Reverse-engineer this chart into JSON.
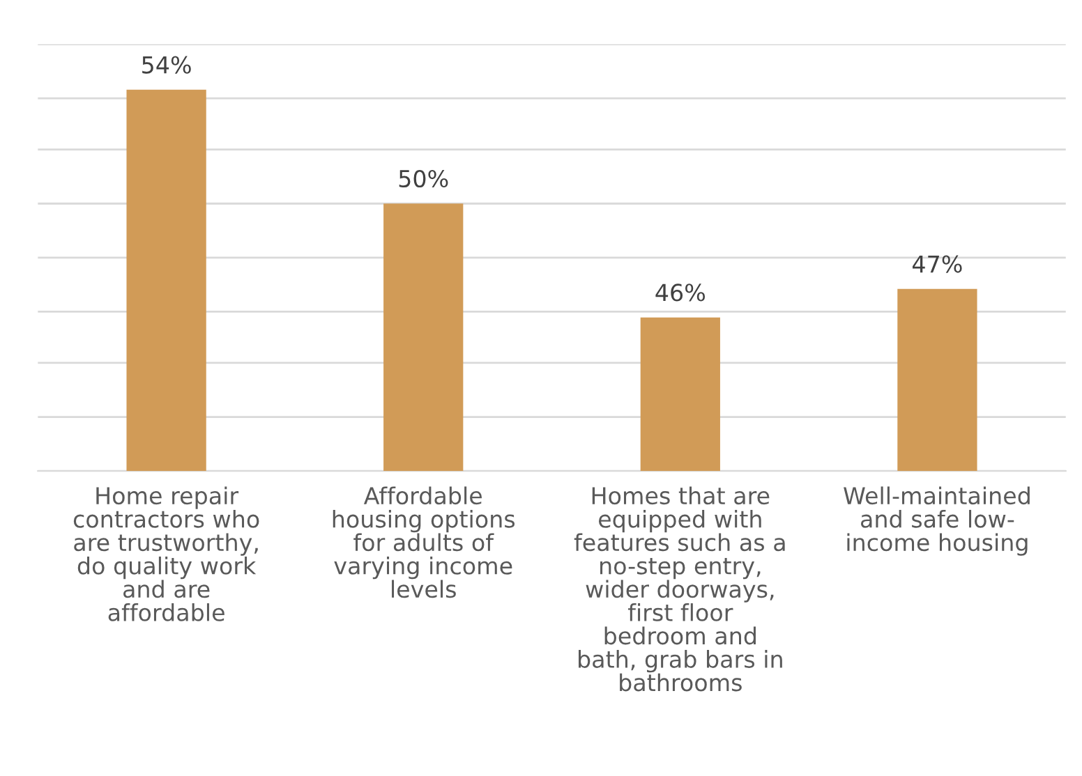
{
  "chart_data": {
    "type": "bar",
    "categories": [
      "Home repair\ncontractors who\nare trustworthy,\ndo quality work\nand are\naffordable",
      "Affordable\nhousing options\nfor adults of\nvarying income\nlevels",
      "Homes that are\nequipped with\nfeatures such as a\nno-step entry,\nwider doorways,\nfirst floor\nbedroom and\nbath, grab bars in\nbathrooms",
      "Well-maintained\nand safe low-\nincome housing"
    ],
    "values": [
      54,
      50,
      46,
      47
    ],
    "value_labels": [
      "54%",
      "50%",
      "46%",
      "47%"
    ],
    "color": "#d19b57",
    "ylim": [
      40.6,
      55.6
    ],
    "yticks": [
      {
        "value": 40.6,
        "label": null
      },
      {
        "value": 42.5,
        "label": null
      },
      {
        "value": 44.4,
        "label": null
      },
      {
        "value": 46.2,
        "label": null
      },
      {
        "value": 48.1,
        "label": null
      },
      {
        "value": 50.0,
        "label": null
      },
      {
        "value": 51.9,
        "label": null
      },
      {
        "value": 53.7,
        "label": null
      },
      {
        "value": 55.6,
        "label": null
      }
    ],
    "grid": "y",
    "tick_labels": "x"
  }
}
